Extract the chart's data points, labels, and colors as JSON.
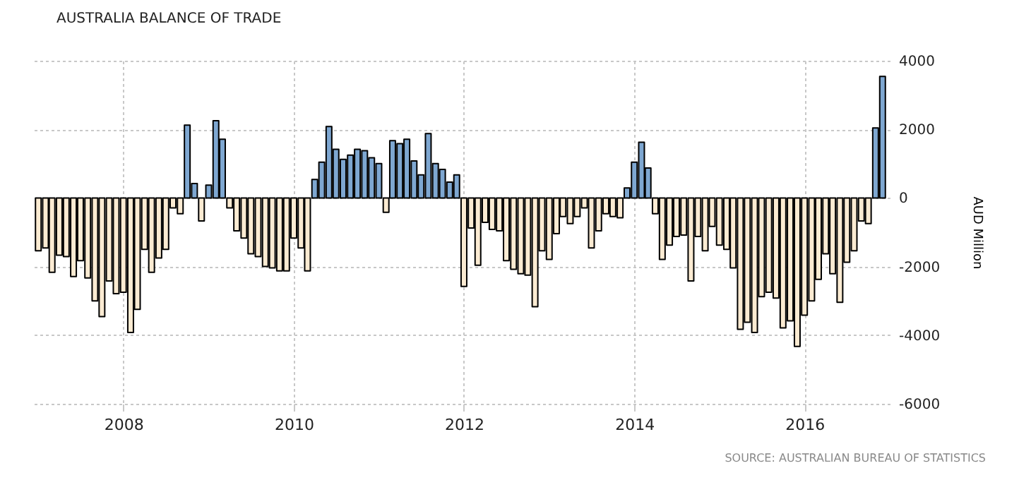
{
  "chart_data": {
    "type": "bar",
    "title": "AUSTRALIA BALANCE OF TRADE",
    "ylabel": "AUD Million",
    "annotations": [
      "SOURCE: AUSTRALIAN BUREAU OF STATISTICS"
    ],
    "x": [
      "2007-01",
      "2007-02",
      "2007-03",
      "2007-04",
      "2007-05",
      "2007-06",
      "2007-07",
      "2007-08",
      "2007-09",
      "2007-10",
      "2007-11",
      "2007-12",
      "2008-01",
      "2008-02",
      "2008-03",
      "2008-04",
      "2008-05",
      "2008-06",
      "2008-07",
      "2008-08",
      "2008-09",
      "2008-10",
      "2008-11",
      "2008-12",
      "2009-01",
      "2009-02",
      "2009-03",
      "2009-04",
      "2009-05",
      "2009-06",
      "2009-07",
      "2009-08",
      "2009-09",
      "2009-10",
      "2009-11",
      "2009-12",
      "2010-01",
      "2010-02",
      "2010-03",
      "2010-04",
      "2010-05",
      "2010-06",
      "2010-07",
      "2010-08",
      "2010-09",
      "2010-10",
      "2010-11",
      "2010-12",
      "2011-01",
      "2011-02",
      "2011-03",
      "2011-04",
      "2011-05",
      "2011-06",
      "2011-07",
      "2011-08",
      "2011-09",
      "2011-10",
      "2011-11",
      "2011-12",
      "2012-01",
      "2012-02",
      "2012-03",
      "2012-04",
      "2012-05",
      "2012-06",
      "2012-07",
      "2012-08",
      "2012-09",
      "2012-10",
      "2012-11",
      "2012-12",
      "2013-01",
      "2013-02",
      "2013-03",
      "2013-04",
      "2013-05",
      "2013-06",
      "2013-07",
      "2013-08",
      "2013-09",
      "2013-10",
      "2013-11",
      "2013-12",
      "2014-01",
      "2014-02",
      "2014-03",
      "2014-04",
      "2014-05",
      "2014-06",
      "2014-07",
      "2014-08",
      "2014-09",
      "2014-10",
      "2014-11",
      "2014-12",
      "2015-01",
      "2015-02",
      "2015-03",
      "2015-04",
      "2015-05",
      "2015-06",
      "2015-07",
      "2015-08",
      "2015-09",
      "2015-10",
      "2015-11",
      "2015-12",
      "2016-01",
      "2016-02",
      "2016-03",
      "2016-04",
      "2016-05",
      "2016-06",
      "2016-07",
      "2016-08",
      "2016-09",
      "2016-10",
      "2016-11",
      "2016-12"
    ],
    "values": [
      -1540,
      -1460,
      -2170,
      -1670,
      -1710,
      -2290,
      -1830,
      -2330,
      -3000,
      -3460,
      -2420,
      -2790,
      -2750,
      -3920,
      -3250,
      -1500,
      -2170,
      -1750,
      -1500,
      -290,
      -460,
      2125,
      420,
      -670,
      375,
      2250,
      1710,
      -290,
      -960,
      -1170,
      -1625,
      -1710,
      -2000,
      -2040,
      -2125,
      -2125,
      -1170,
      -1460,
      -2125,
      540,
      1040,
      2080,
      1420,
      1125,
      1250,
      1420,
      1375,
      1170,
      1000,
      -420,
      1670,
      1580,
      1710,
      1080,
      670,
      1875,
      1000,
      830,
      460,
      670,
      -2580,
      -875,
      -1960,
      -710,
      -920,
      -960,
      -1830,
      -2080,
      -2210,
      -2250,
      -3170,
      -1540,
      -1790,
      -1040,
      -540,
      -750,
      -540,
      -290,
      -1460,
      -960,
      -460,
      -540,
      -580,
      290,
      1040,
      1625,
      875,
      -460,
      -1790,
      -1375,
      -1125,
      -1080,
      -2420,
      -1125,
      -1540,
      -830,
      -1375,
      -1500,
      -2040,
      -3830,
      -3625,
      -3920,
      -2875,
      -2750,
      -2920,
      -3790,
      -3580,
      -4330,
      -3420,
      -3000,
      -2375,
      -1625,
      -2210,
      -3040,
      -1875,
      -1540,
      -670,
      -750,
      2040,
      3540
    ],
    "colors": [
      "#fbebd2",
      "#fbebd2",
      "#fbebd2",
      "#fbebd2",
      "#fbebd2",
      "#fbebd2",
      "#fbebd2",
      "#fbebd2",
      "#fbebd2",
      "#fbebd2",
      "#fbebd2",
      "#fbebd2",
      "#fbebd2",
      "#fbebd2",
      "#fbebd2",
      "#fbebd2",
      "#fbebd2",
      "#fbebd2",
      "#fbebd2",
      "#fbebd2",
      "#fbebd2",
      "#7ea7d1",
      "#7ea7d1",
      "#fbebd2",
      "#7ea7d1",
      "#7ea7d1",
      "#7ea7d1",
      "#fbebd2",
      "#fbebd2",
      "#fbebd2",
      "#fbebd2",
      "#fbebd2",
      "#fbebd2",
      "#fbebd2",
      "#fbebd2",
      "#fbebd2",
      "#fbebd2",
      "#fbebd2",
      "#fbebd2",
      "#7ea7d1",
      "#7ea7d1",
      "#7ea7d1",
      "#7ea7d1",
      "#7ea7d1",
      "#7ea7d1",
      "#7ea7d1",
      "#7ea7d1",
      "#7ea7d1",
      "#7ea7d1",
      "#fbebd2",
      "#7ea7d1",
      "#7ea7d1",
      "#7ea7d1",
      "#7ea7d1",
      "#7ea7d1",
      "#7ea7d1",
      "#7ea7d1",
      "#7ea7d1",
      "#7ea7d1",
      "#7ea7d1",
      "#fbebd2",
      "#fbebd2",
      "#fbebd2",
      "#fbebd2",
      "#fbebd2",
      "#fbebd2",
      "#fbebd2",
      "#fbebd2",
      "#fbebd2",
      "#fbebd2",
      "#fbebd2",
      "#fbebd2",
      "#fbebd2",
      "#fbebd2",
      "#fbebd2",
      "#fbebd2",
      "#fbebd2",
      "#fbebd2",
      "#fbebd2",
      "#fbebd2",
      "#fbebd2",
      "#fbebd2",
      "#fbebd2",
      "#7ea7d1",
      "#7ea7d1",
      "#7ea7d1",
      "#7ea7d1",
      "#fbebd2",
      "#fbebd2",
      "#fbebd2",
      "#fbebd2",
      "#fbebd2",
      "#fbebd2",
      "#fbebd2",
      "#fbebd2",
      "#fbebd2",
      "#fbebd2",
      "#fbebd2",
      "#fbebd2",
      "#fbebd2",
      "#fbebd2",
      "#fbebd2",
      "#fbebd2",
      "#fbebd2",
      "#fbebd2",
      "#fbebd2",
      "#fbebd2",
      "#fbebd2",
      "#fbebd2",
      "#fbebd2",
      "#fbebd2",
      "#fbebd2",
      "#fbebd2",
      "#fbebd2",
      "#fbebd2",
      "#fbebd2",
      "#fbebd2",
      "#fbebd2",
      "#7ea7d1",
      "#7ea7d1"
    ],
    "xlim": [
      "2006-12",
      "2017-01"
    ],
    "xticks": [
      "2008",
      "2010",
      "2012",
      "2014",
      "2016"
    ],
    "ylim": [
      -6000,
      4000
    ],
    "yticks": [
      -6000,
      -4000,
      -2000,
      0,
      2000,
      4000
    ],
    "grid": true
  }
}
